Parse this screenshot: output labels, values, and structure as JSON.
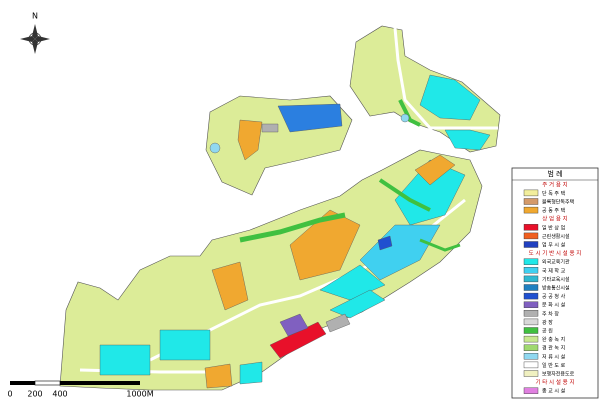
{
  "map": {
    "north": "N",
    "scale": [
      "0",
      "200",
      "400",
      "1000M"
    ],
    "legend": {
      "title": "범 례",
      "groups": [
        {
          "name": "주 거 용 지",
          "items": [
            {
              "label": "단 독 주 택",
              "color": "#f2ee9c"
            },
            {
              "label": "블록형단독주택",
              "color": "#d49a6a"
            },
            {
              "label": "공 동 주 택",
              "color": "#f0a830"
            }
          ]
        },
        {
          "name": "상 업 용 지",
          "items": [
            {
              "label": "일 반 상 업",
              "color": "#e8102a"
            },
            {
              "label": "근린생활시설",
              "color": "#f06020"
            },
            {
              "label": "업 무 시 설",
              "color": "#2040c0"
            }
          ]
        },
        {
          "name": "도 시 기 반 시 설 용 지",
          "items": [
            {
              "label": "외국교육기관",
              "color": "#20e8e8"
            },
            {
              "label": "국 제 학 교",
              "color": "#40d0f0"
            },
            {
              "label": "기타교육시설",
              "color": "#30b8d0"
            },
            {
              "label": "방송통신시설",
              "color": "#2080c0"
            },
            {
              "label": "공 공 청 사",
              "color": "#2050d0"
            },
            {
              "label": "문 화 시 설",
              "color": "#8060c0"
            },
            {
              "label": "주 차 장",
              "color": "#b0b0b0"
            },
            {
              "label": "광 장",
              "color": "#d8d8d8"
            },
            {
              "label": "공 원",
              "color": "#40c040"
            },
            {
              "label": "완 충 녹 지",
              "color": "#c8e890"
            },
            {
              "label": "경 관 녹 지",
              "color": "#a0d870"
            },
            {
              "label": "저 류 시 설",
              "color": "#90d8f0"
            },
            {
              "label": "일 반 도 로",
              "color": "#ffffff"
            },
            {
              "label": "보행자전용도로",
              "color": "#f0f0c0"
            }
          ]
        },
        {
          "name": "기 타 시 설 용 지",
          "items": [
            {
              "label": "종 교 시 설",
              "color": "#e080e0"
            }
          ]
        }
      ]
    }
  }
}
